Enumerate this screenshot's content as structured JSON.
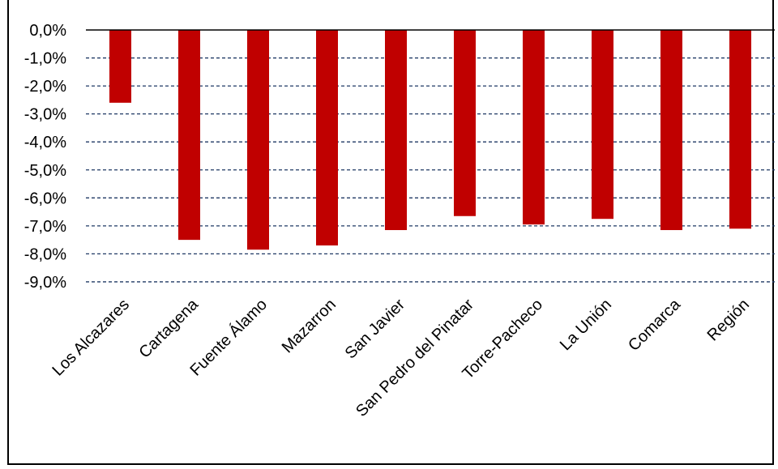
{
  "chart_data": {
    "type": "bar",
    "title": "",
    "xlabel": "",
    "ylabel": "",
    "categories": [
      "Los Alcazares",
      "Cartagena",
      "Fuente Álamo",
      "Mazarron",
      "San Javier",
      "San Pedro del Pinatar",
      "Torre-Pacheco",
      "La Unión",
      "Comarca",
      "Región"
    ],
    "values": [
      -2.6,
      -7.5,
      -7.85,
      -7.7,
      -7.15,
      -6.65,
      -6.95,
      -6.75,
      -7.15,
      -7.1
    ],
    "ylim": [
      -9.0,
      0.0
    ],
    "yticks": [
      "0,0%",
      "-1,0%",
      "-2,0%",
      "-3,0%",
      "-4,0%",
      "-5,0%",
      "-6,0%",
      "-7,0%",
      "-8,0%",
      "-9,0%"
    ],
    "grid": true,
    "bar_color": "#C00000",
    "grid_color": "#1F3864",
    "legend": "none"
  }
}
